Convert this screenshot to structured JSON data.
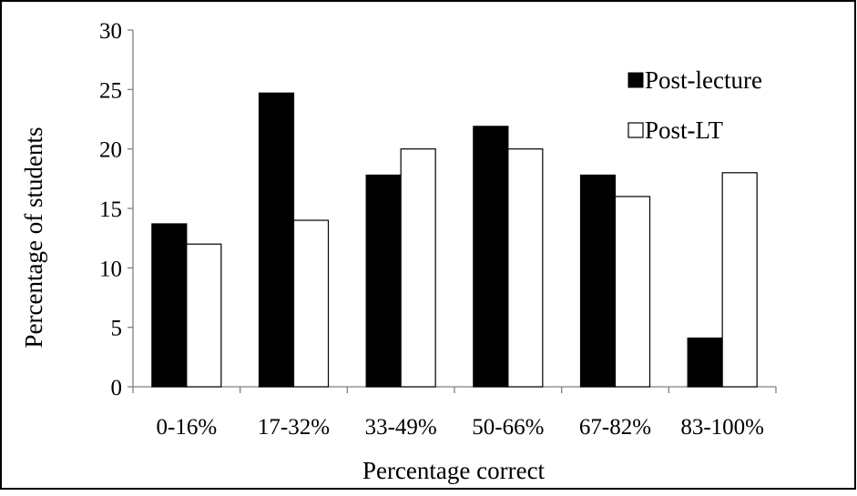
{
  "chart_data": {
    "type": "bar",
    "xlabel": "Percentage correct",
    "ylabel": "Percentage of students",
    "ylim": [
      0,
      30
    ],
    "yticks": [
      0,
      5,
      10,
      15,
      20,
      25,
      30
    ],
    "grid": false,
    "legend_position": "top-right",
    "categories": [
      "0-16%",
      "17-32%",
      "33-49%",
      "50-66%",
      "67-82%",
      "83-100%"
    ],
    "series": [
      {
        "name": "Post-lecture",
        "values": [
          13.7,
          24.7,
          17.8,
          21.9,
          17.8,
          4.1
        ],
        "color": "#000000"
      },
      {
        "name": "Post-LT",
        "values": [
          12,
          14,
          20,
          20,
          16,
          18
        ],
        "color": "#ffffff"
      }
    ]
  }
}
